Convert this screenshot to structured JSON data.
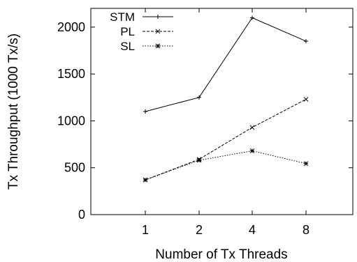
{
  "chart_data": {
    "type": "line",
    "title": "",
    "xlabel": "Number of Tx Threads",
    "ylabel": "Tx Throughput (1000 Tx/s)",
    "categories": [
      "1",
      "2",
      "4",
      "8"
    ],
    "ylim": [
      0,
      2200
    ],
    "yticks": [
      "0",
      "500",
      "1000",
      "1500",
      "2000"
    ],
    "grid": false,
    "legend_position": "top-left",
    "series": [
      {
        "name": "STM",
        "values": [
          1100,
          1250,
          2100,
          1850
        ],
        "dash": "solid",
        "marker": "plus"
      },
      {
        "name": "PL",
        "values": [
          370,
          590,
          930,
          1230
        ],
        "dash": "dashed",
        "marker": "x"
      },
      {
        "name": "SL",
        "values": [
          370,
          580,
          680,
          545
        ],
        "dash": "dotted",
        "marker": "star"
      }
    ]
  }
}
